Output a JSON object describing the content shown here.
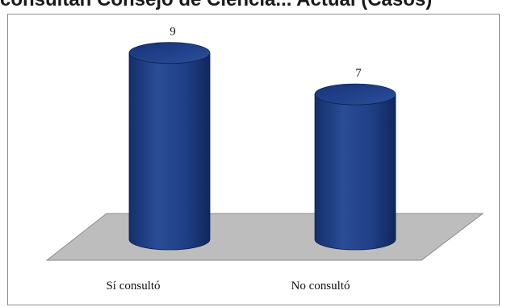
{
  "title": "consultan Consejo de Ciencia... Actual (Casos)",
  "chart_data": {
    "type": "bar",
    "style": "3d-cylinder",
    "categories": [
      "Sí consultó",
      "No consultó"
    ],
    "values": [
      9,
      7
    ],
    "data_labels": [
      "9",
      "7"
    ],
    "ylim": [
      0,
      10
    ],
    "grid": false,
    "legend": "none",
    "colors": {
      "bar": "#1f3f86",
      "bar_dark": "#10275c",
      "bar_light": "#3a5ea8",
      "floor": "#bdbdbd"
    }
  }
}
